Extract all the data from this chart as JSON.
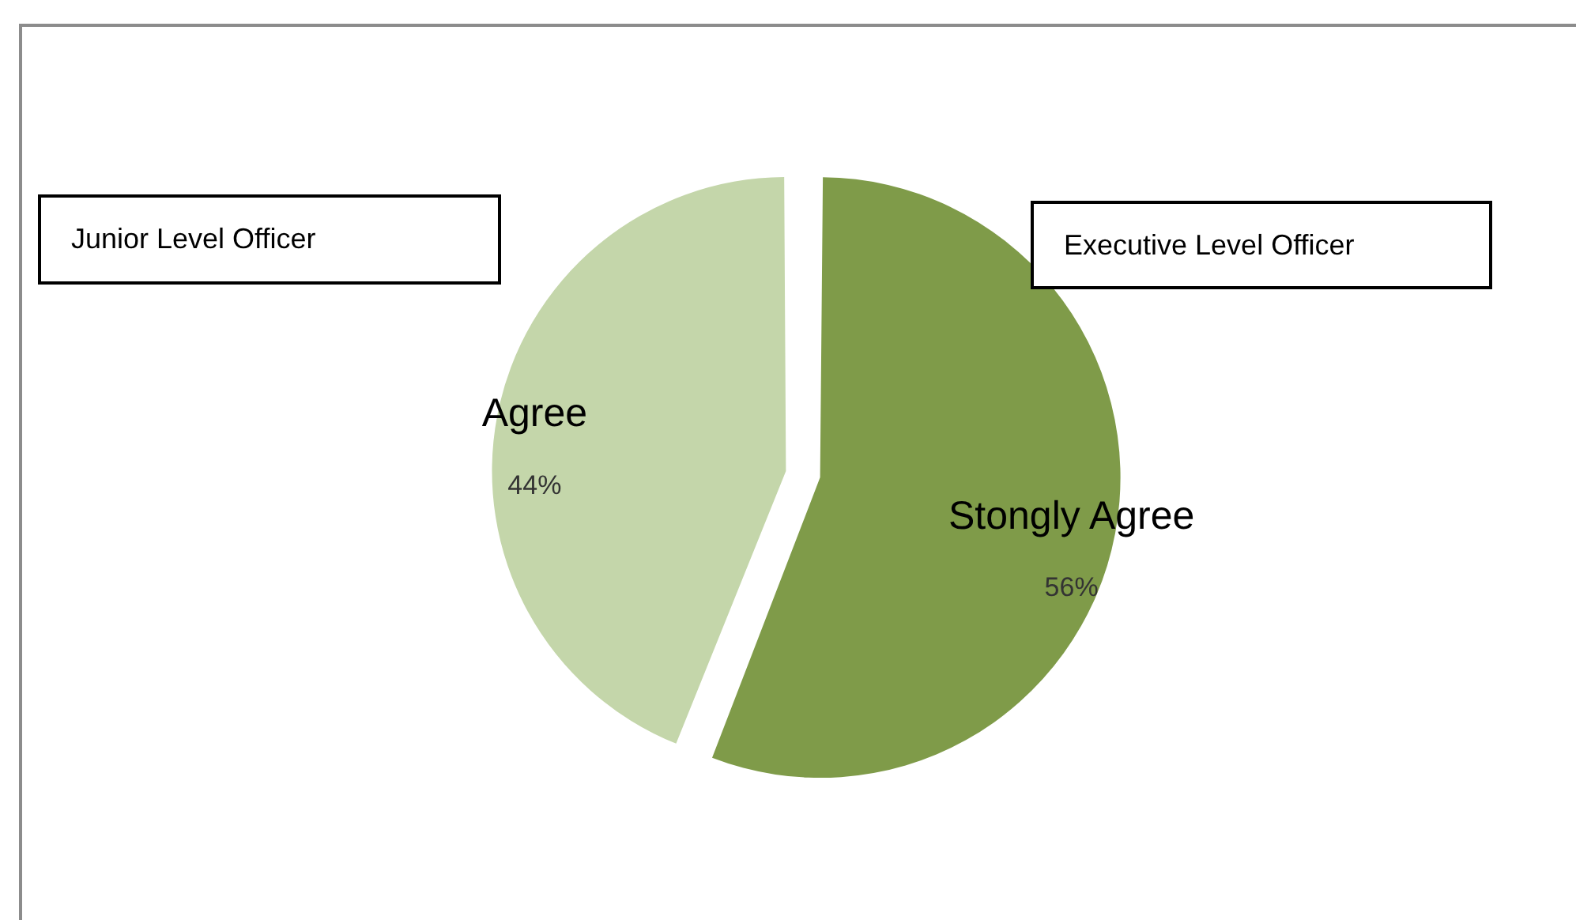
{
  "chart_data": {
    "type": "pie",
    "categories": [
      "Stongly Agree",
      "Agree"
    ],
    "values": [
      56,
      44
    ],
    "colors": [
      "#7f9b49",
      "#c4d6aa"
    ],
    "value_labels": [
      "56%",
      "44%"
    ],
    "annotations": [
      "Junior Level Officer",
      "Executive Level Officer"
    ]
  }
}
